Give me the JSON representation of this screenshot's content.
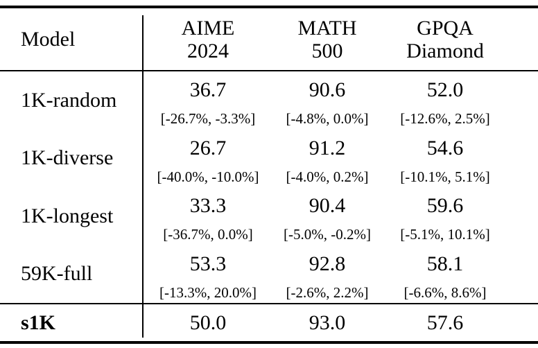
{
  "table": {
    "header": {
      "model_label": "Model",
      "columns": [
        {
          "line1": "AIME",
          "line2": "2024"
        },
        {
          "line1": "MATH",
          "line2": "500"
        },
        {
          "line1": "GPQA",
          "line2": "Diamond"
        }
      ]
    },
    "rows": [
      {
        "model": "1K-random",
        "cells": [
          {
            "value": "36.7",
            "ci": "[-26.7%, -3.3%]"
          },
          {
            "value": "90.6",
            "ci": "[-4.8%, 0.0%]"
          },
          {
            "value": "52.0",
            "ci": "[-12.6%, 2.5%]"
          }
        ]
      },
      {
        "model": "1K-diverse",
        "cells": [
          {
            "value": "26.7",
            "ci": "[-40.0%, -10.0%]"
          },
          {
            "value": "91.2",
            "ci": "[-4.0%, 0.2%]"
          },
          {
            "value": "54.6",
            "ci": "[-10.1%, 5.1%]"
          }
        ]
      },
      {
        "model": "1K-longest",
        "cells": [
          {
            "value": "33.3",
            "ci": "[-36.7%, 0.0%]"
          },
          {
            "value": "90.4",
            "ci": "[-5.0%, -0.2%]"
          },
          {
            "value": "59.6",
            "ci": "[-5.1%, 10.1%]"
          }
        ]
      },
      {
        "model": "59K-full",
        "cells": [
          {
            "value": "53.3",
            "ci": "[-13.3%, 20.0%]"
          },
          {
            "value": "92.8",
            "ci": "[-2.6%, 2.2%]"
          },
          {
            "value": "58.1",
            "ci": "[-6.6%, 8.6%]"
          }
        ]
      }
    ],
    "footer": {
      "model": "s1K",
      "values": [
        "50.0",
        "93.0",
        "57.6"
      ]
    }
  },
  "colors": {
    "text": "#000000",
    "background": "#ffffff",
    "rule": "#000000"
  }
}
